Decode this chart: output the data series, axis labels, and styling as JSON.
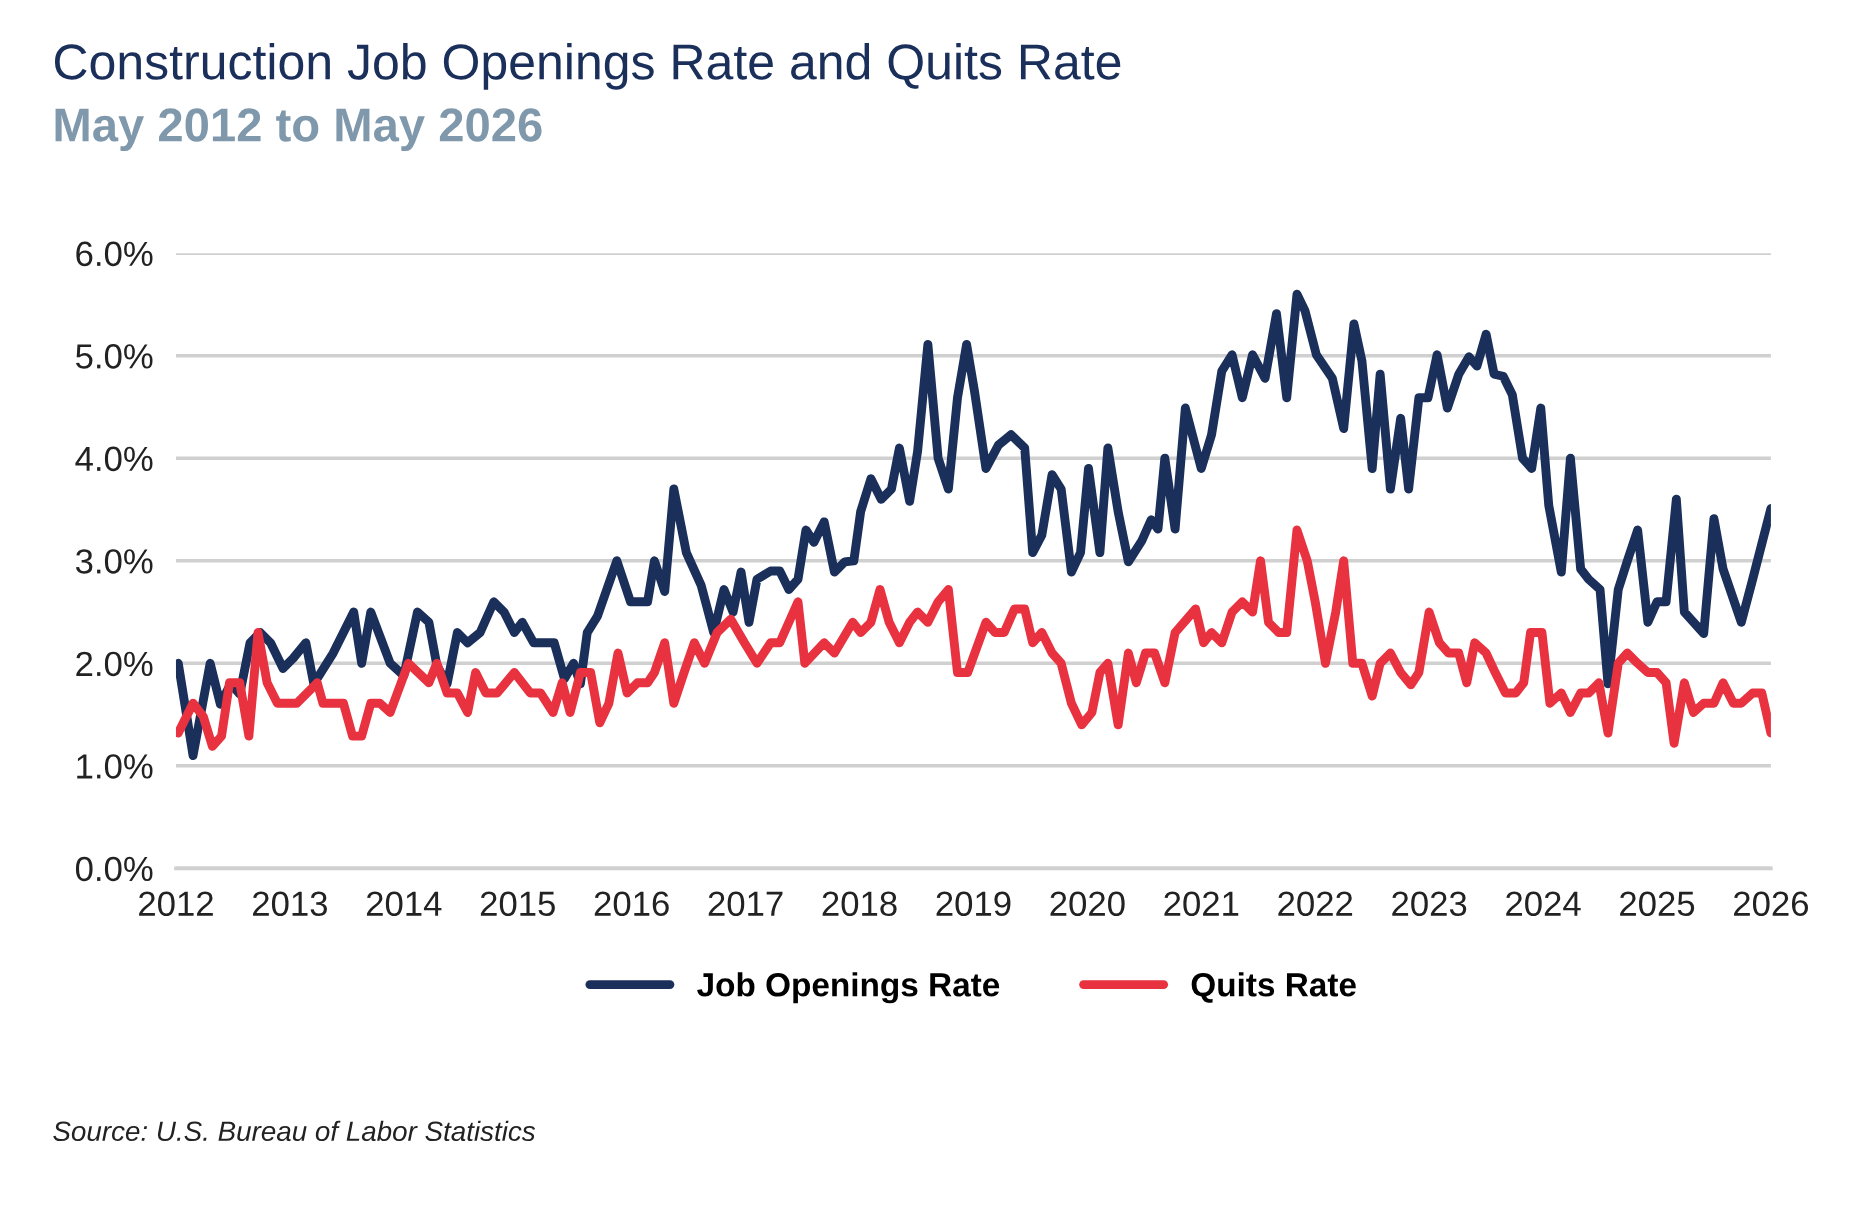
{
  "chart_data": {
    "type": "line",
    "title": "Construction Job Openings Rate and Quits Rate",
    "subtitle": "May 2012 to May 2026",
    "annotations": [
      "Source: U.S. Bureau of Labor Statistics"
    ],
    "ylim": [
      0,
      6
    ],
    "yticks": [
      {
        "value": 0,
        "label": "0.0%"
      },
      {
        "value": 1,
        "label": "1.0%"
      },
      {
        "value": 2,
        "label": "2.0%"
      },
      {
        "value": 3,
        "label": "3.0%"
      },
      {
        "value": 4,
        "label": "4.0%"
      },
      {
        "value": 5,
        "label": "5.0%"
      },
      {
        "value": 6,
        "label": "6.0%"
      }
    ],
    "xlim": [
      2012,
      2026
    ],
    "xticks": [
      2012,
      2013,
      2014,
      2015,
      2016,
      2017,
      2018,
      2019,
      2020,
      2021,
      2022,
      2023,
      2024,
      2025,
      2026
    ],
    "grid": "y",
    "legend": "bottom",
    "marker": "none",
    "line_style": "solid",
    "series": [
      {
        "name": "Job Openings Rate",
        "color": "#1b2f5b",
        "x": [
          2012.02,
          2012.15,
          2012.3,
          2012.39,
          2012.48,
          2012.56,
          2012.65,
          2012.74,
          2012.83,
          2012.94,
          2013.03,
          2013.14,
          2013.21,
          2013.38,
          2013.56,
          2013.63,
          2013.71,
          2013.88,
          2014.0,
          2014.12,
          2014.22,
          2014.29,
          2014.38,
          2014.47,
          2014.56,
          2014.67,
          2014.79,
          2014.88,
          2014.97,
          2015.04,
          2015.14,
          2015.32,
          2015.41,
          2015.49,
          2015.55,
          2015.61,
          2015.7,
          2015.87,
          2015.99,
          2016.14,
          2016.2,
          2016.29,
          2016.37,
          2016.48,
          2016.61,
          2016.72,
          2016.81,
          2016.89,
          2016.96,
          2017.03,
          2017.1,
          2017.22,
          2017.3,
          2017.38,
          2017.46,
          2017.53,
          2017.6,
          2017.69,
          2017.78,
          2017.87,
          2017.95,
          2018.01,
          2018.1,
          2018.19,
          2018.28,
          2018.35,
          2018.44,
          2018.51,
          2018.6,
          2018.69,
          2018.78,
          2018.86,
          2018.94,
          2019.01,
          2019.11,
          2019.22,
          2019.33,
          2019.45,
          2019.52,
          2019.6,
          2019.69,
          2019.77,
          2019.86,
          2019.94,
          2020.01,
          2020.11,
          2020.18,
          2020.27,
          2020.36,
          2020.48,
          2020.56,
          2020.62,
          2020.68,
          2020.77,
          2020.86,
          2021.0,
          2021.09,
          2021.18,
          2021.27,
          2021.36,
          2021.45,
          2021.56,
          2021.66,
          2021.75,
          2021.84,
          2021.91,
          2022.01,
          2022.15,
          2022.25,
          2022.34,
          2022.41,
          2022.5,
          2022.57,
          2022.66,
          2022.75,
          2022.82,
          2022.91,
          2022.99,
          2023.07,
          2023.16,
          2023.26,
          2023.35,
          2023.42,
          2023.5,
          2023.57,
          2023.65,
          2023.73,
          2023.82,
          2023.9,
          2023.98,
          2024.05,
          2024.16,
          2024.24,
          2024.33,
          2024.4,
          2024.5,
          2024.57,
          2024.66,
          2024.74,
          2024.83,
          2024.92,
          2025.0,
          2025.08,
          2025.17,
          2025.24,
          2025.41,
          2025.5,
          2025.58,
          2025.74,
          2025.84,
          2026.0
        ],
        "values": [
          2.0,
          1.1,
          2.0,
          1.6,
          1.8,
          1.7,
          2.2,
          2.3,
          2.2,
          1.95,
          2.05,
          2.2,
          1.8,
          2.1,
          2.5,
          2.0,
          2.5,
          2.0,
          1.88,
          2.5,
          2.4,
          1.98,
          1.8,
          2.3,
          2.2,
          2.3,
          2.6,
          2.5,
          2.3,
          2.4,
          2.2,
          2.2,
          1.85,
          2.0,
          1.8,
          2.3,
          2.46,
          3.0,
          2.6,
          2.6,
          3.0,
          2.7,
          3.7,
          3.08,
          2.76,
          2.3,
          2.72,
          2.5,
          2.89,
          2.4,
          2.82,
          2.9,
          2.9,
          2.72,
          2.82,
          3.3,
          3.18,
          3.38,
          2.89,
          2.99,
          3.0,
          3.48,
          3.8,
          3.6,
          3.7,
          4.1,
          3.58,
          4.07,
          5.11,
          4.0,
          3.7,
          4.59,
          5.11,
          4.65,
          3.9,
          4.13,
          4.23,
          4.1,
          3.08,
          3.25,
          3.84,
          3.7,
          2.89,
          3.08,
          3.9,
          3.08,
          4.1,
          3.48,
          2.99,
          3.2,
          3.4,
          3.31,
          4.0,
          3.31,
          4.49,
          3.9,
          4.23,
          4.85,
          5.01,
          4.59,
          5.01,
          4.78,
          5.41,
          4.59,
          5.6,
          5.44,
          5.01,
          4.78,
          4.29,
          5.31,
          4.95,
          3.9,
          4.82,
          3.7,
          4.39,
          3.7,
          4.59,
          4.59,
          5.01,
          4.49,
          4.82,
          4.99,
          4.9,
          5.21,
          4.82,
          4.8,
          4.62,
          4.0,
          3.9,
          4.49,
          3.54,
          2.89,
          4.0,
          2.92,
          2.82,
          2.72,
          1.8,
          2.72,
          3.0,
          3.3,
          2.4,
          2.6,
          2.6,
          3.6,
          2.5,
          2.29,
          3.41,
          2.92,
          2.4,
          2.82,
          3.51
        ]
      },
      {
        "name": "Quits Rate",
        "color": "#e8323f",
        "x": [
          2012.02,
          2012.15,
          2012.24,
          2012.32,
          2012.4,
          2012.47,
          2012.56,
          2012.64,
          2012.72,
          2012.8,
          2012.89,
          2013.06,
          2013.24,
          2013.29,
          2013.47,
          2013.55,
          2013.63,
          2013.71,
          2013.79,
          2013.88,
          2014.04,
          2014.22,
          2014.29,
          2014.38,
          2014.47,
          2014.56,
          2014.63,
          2014.72,
          2014.82,
          2014.97,
          2015.11,
          2015.2,
          2015.31,
          2015.39,
          2015.46,
          2015.55,
          2015.64,
          2015.72,
          2015.8,
          2015.88,
          2015.96,
          2016.05,
          2016.14,
          2016.2,
          2016.29,
          2016.37,
          2016.46,
          2016.55,
          2016.64,
          2016.75,
          2016.87,
          2016.99,
          2017.1,
          2017.22,
          2017.3,
          2017.46,
          2017.52,
          2017.69,
          2017.78,
          2017.94,
          2018.01,
          2018.1,
          2018.18,
          2018.26,
          2018.35,
          2018.44,
          2018.51,
          2018.6,
          2018.69,
          2018.78,
          2018.86,
          2018.95,
          2019.11,
          2019.19,
          2019.27,
          2019.36,
          2019.45,
          2019.52,
          2019.6,
          2019.69,
          2019.77,
          2019.86,
          2019.95,
          2020.04,
          2020.11,
          2020.18,
          2020.27,
          2020.36,
          2020.43,
          2020.51,
          2020.59,
          2020.68,
          2020.77,
          2020.95,
          2021.02,
          2021.09,
          2021.18,
          2021.27,
          2021.36,
          2021.45,
          2021.52,
          2021.59,
          2021.68,
          2021.75,
          2021.84,
          2021.93,
          2022.0,
          2022.09,
          2022.18,
          2022.25,
          2022.33,
          2022.41,
          2022.5,
          2022.57,
          2022.66,
          2022.75,
          2022.84,
          2022.91,
          2023.0,
          2023.09,
          2023.17,
          2023.26,
          2023.33,
          2023.4,
          2023.5,
          2023.58,
          2023.67,
          2023.76,
          2023.83,
          2023.89,
          2023.99,
          2024.06,
          2024.16,
          2024.24,
          2024.33,
          2024.4,
          2024.49,
          2024.57,
          2024.66,
          2024.74,
          2024.83,
          2024.92,
          2025.0,
          2025.08,
          2025.15,
          2025.24,
          2025.32,
          2025.41,
          2025.5,
          2025.58,
          2025.67,
          2025.74,
          2025.84,
          2025.92,
          2026.0
        ],
        "values": [
          1.32,
          1.61,
          1.48,
          1.19,
          1.29,
          1.81,
          1.81,
          1.29,
          2.3,
          1.81,
          1.61,
          1.61,
          1.81,
          1.61,
          1.61,
          1.29,
          1.29,
          1.61,
          1.61,
          1.52,
          2.0,
          1.81,
          2.0,
          1.71,
          1.71,
          1.52,
          1.91,
          1.71,
          1.71,
          1.91,
          1.71,
          1.71,
          1.52,
          1.81,
          1.52,
          1.91,
          1.91,
          1.42,
          1.61,
          2.1,
          1.71,
          1.81,
          1.81,
          1.91,
          2.2,
          1.61,
          1.91,
          2.2,
          2.0,
          2.3,
          2.43,
          2.2,
          2.0,
          2.2,
          2.2,
          2.6,
          2.0,
          2.2,
          2.1,
          2.4,
          2.3,
          2.4,
          2.72,
          2.4,
          2.2,
          2.4,
          2.5,
          2.4,
          2.6,
          2.72,
          1.91,
          1.91,
          2.4,
          2.3,
          2.3,
          2.53,
          2.53,
          2.2,
          2.3,
          2.1,
          2.0,
          1.61,
          1.4,
          1.52,
          1.91,
          2.0,
          1.4,
          2.1,
          1.81,
          2.1,
          2.1,
          1.81,
          2.3,
          2.53,
          2.2,
          2.3,
          2.2,
          2.5,
          2.6,
          2.5,
          3.0,
          2.4,
          2.3,
          2.3,
          3.3,
          3.0,
          2.6,
          2.0,
          2.5,
          3.0,
          2.0,
          2.0,
          1.68,
          2.0,
          2.1,
          1.91,
          1.79,
          1.91,
          2.5,
          2.2,
          2.1,
          2.1,
          1.81,
          2.2,
          2.1,
          1.91,
          1.71,
          1.71,
          1.81,
          2.3,
          2.3,
          1.61,
          1.71,
          1.52,
          1.71,
          1.71,
          1.81,
          1.32,
          2.0,
          2.1,
          2.0,
          1.91,
          1.91,
          1.81,
          1.22,
          1.81,
          1.52,
          1.61,
          1.61,
          1.81,
          1.61,
          1.61,
          1.71,
          1.71,
          1.32
        ]
      }
    ]
  }
}
